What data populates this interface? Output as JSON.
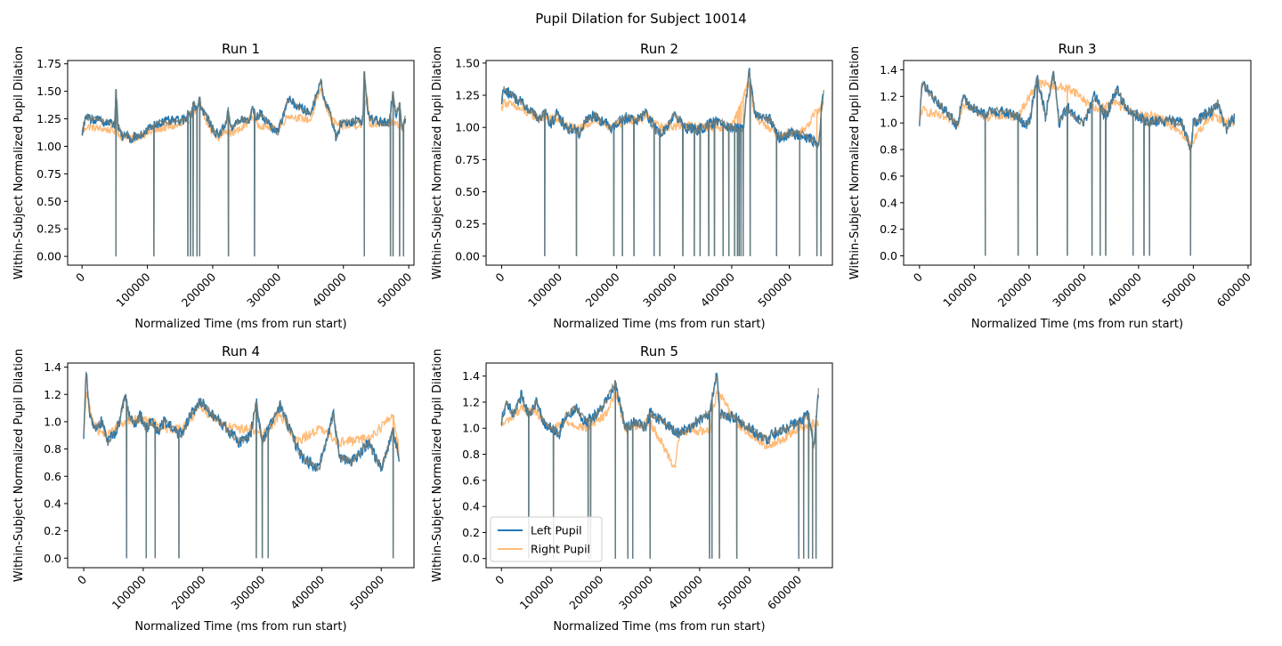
{
  "figure": {
    "title": "Pupil Dilation for Subject 10014"
  },
  "legend": {
    "entries": [
      "Left Pupil",
      "Right Pupil"
    ],
    "placement": "lower-left of Run 5"
  },
  "colors": {
    "left": "#1f77b4",
    "right": "#ffbb78",
    "overlap": "#767a70"
  },
  "chart_data": [
    {
      "type": "line",
      "title": "Run 1",
      "xlabel": "Normalized Time (ms from run start)",
      "ylabel": "Within-Subject Normalized Pupil Dilation",
      "xlim": [
        -22000,
        508000
      ],
      "ylim": [
        -0.08,
        1.78
      ],
      "xticks": [
        0,
        100000,
        200000,
        300000,
        400000,
        500000
      ],
      "xtick_labels": [
        "0",
        "100000",
        "200000",
        "300000",
        "400000",
        "500000"
      ],
      "yticks": [
        0,
        0.25,
        0.5,
        0.75,
        1.0,
        1.25,
        1.5,
        1.75
      ],
      "ytick_labels": [
        "0.00",
        "0.25",
        "0.50",
        "0.75",
        "1.00",
        "1.25",
        "1.50",
        "1.75"
      ],
      "series": [
        {
          "name": "Left Pupil",
          "x": [
            0,
            6000,
            50000,
            52000,
            55000,
            60000,
            65000,
            70000,
            75000,
            80000,
            85000,
            90000,
            95000,
            100000,
            108000,
            112000,
            120000,
            160000,
            162000,
            168000,
            170000,
            176000,
            180000,
            182000,
            190000,
            200000,
            210000,
            220000,
            224000,
            228000,
            235000,
            245000,
            256000,
            260000,
            264000,
            268000,
            272000,
            300000,
            315000,
            330000,
            350000,
            365000,
            370000,
            380000,
            390000,
            395000,
            430000,
            432000,
            436000,
            440000,
            470000,
            476000,
            480000,
            486000,
            490000,
            495000
          ],
          "y": [
            1.12,
            1.26,
            1.2,
            1.52,
            1.18,
            1.1,
            1.08,
            1.12,
            1.05,
            1.1,
            1.08,
            1.12,
            1.1,
            1.15,
            1.18,
            1.2,
            1.22,
            1.24,
            1.32,
            1.28,
            1.4,
            1.33,
            1.45,
            1.35,
            1.28,
            1.15,
            1.1,
            1.22,
            1.32,
            1.18,
            1.2,
            1.25,
            1.22,
            1.35,
            1.3,
            1.26,
            1.3,
            1.12,
            1.43,
            1.36,
            1.3,
            1.6,
            1.45,
            1.3,
            1.05,
            1.21,
            1.24,
            1.68,
            1.4,
            1.25,
            1.2,
            1.5,
            1.28,
            1.4,
            1.15,
            1.26
          ]
        },
        {
          "name": "Right Pupil",
          "x": [
            0,
            6000,
            50000,
            52000,
            55000,
            60000,
            70000,
            80000,
            90000,
            100000,
            112000,
            120000,
            160000,
            170000,
            180000,
            190000,
            200000,
            210000,
            220000,
            228000,
            245000,
            260000,
            268000,
            300000,
            315000,
            330000,
            350000,
            365000,
            380000,
            395000,
            430000,
            436000,
            440000,
            470000,
            480000,
            490000,
            495000
          ],
          "y": [
            1.1,
            1.18,
            1.14,
            1.45,
            1.12,
            1.08,
            1.1,
            1.06,
            1.1,
            1.12,
            1.14,
            1.16,
            1.2,
            1.3,
            1.38,
            1.22,
            1.12,
            1.08,
            1.15,
            1.12,
            1.16,
            1.28,
            1.2,
            1.15,
            1.28,
            1.26,
            1.24,
            1.52,
            1.25,
            1.18,
            1.2,
            1.5,
            1.2,
            1.22,
            1.2,
            1.18,
            1.24
          ]
        }
      ],
      "dropouts_x": [
        52000,
        110000,
        162000,
        166000,
        170000,
        176000,
        180000,
        224000,
        264000,
        432000,
        472000,
        476000,
        486000,
        492000
      ]
    },
    {
      "type": "line",
      "title": "Run 2",
      "xlabel": "Normalized Time (ms from run start)",
      "ylabel": "Within-Subject Normalized Pupil Dilation",
      "xlim": [
        -27000,
        575000
      ],
      "ylim": [
        -0.07,
        1.52
      ],
      "xticks": [
        0,
        100000,
        200000,
        300000,
        400000,
        500000
      ],
      "xtick_labels": [
        "0",
        "100000",
        "200000",
        "300000",
        "400000",
        "500000"
      ],
      "yticks": [
        0,
        0.25,
        0.5,
        0.75,
        1.0,
        1.25,
        1.5
      ],
      "ytick_labels": [
        "0.00",
        "0.25",
        "0.50",
        "0.75",
        "1.00",
        "1.25",
        "1.50"
      ],
      "series": [
        {
          "name": "Left Pupil",
          "x": [
            0,
            4000,
            60000,
            65000,
            75000,
            85000,
            95000,
            105000,
            115000,
            125000,
            135000,
            145000,
            160000,
            175000,
            190000,
            205000,
            220000,
            235000,
            250000,
            265000,
            280000,
            300000,
            320000,
            340000,
            360000,
            380000,
            400000,
            420000,
            430000,
            440000,
            470000,
            480000,
            500000,
            520000,
            540000,
            550000,
            560000
          ],
          "y": [
            1.2,
            1.3,
            1.1,
            1.05,
            1.12,
            1.02,
            1.1,
            1.05,
            0.98,
            1.0,
            0.95,
            1.05,
            1.1,
            1.05,
            1.0,
            1.05,
            1.08,
            1.05,
            1.12,
            1.0,
            0.95,
            1.1,
            1.0,
            0.98,
            1.02,
            1.05,
            1.0,
            0.98,
            1.45,
            1.1,
            1.05,
            0.92,
            0.95,
            0.95,
            0.9,
            0.85,
            1.3
          ]
        },
        {
          "name": "Right Pupil",
          "x": [
            0,
            4000,
            60000,
            75000,
            95000,
            115000,
            135000,
            160000,
            190000,
            220000,
            250000,
            280000,
            320000,
            360000,
            400000,
            430000,
            440000,
            480000,
            520000,
            560000
          ],
          "y": [
            1.15,
            1.2,
            1.08,
            1.08,
            1.06,
            1.02,
            0.98,
            1.06,
            1.0,
            1.05,
            1.08,
            1.0,
            1.02,
            1.0,
            1.0,
            1.35,
            1.08,
            0.95,
            0.95,
            1.2
          ]
        }
      ],
      "dropouts_x": [
        75000,
        130000,
        195000,
        210000,
        230000,
        265000,
        275000,
        315000,
        335000,
        345000,
        360000,
        370000,
        385000,
        395000,
        405000,
        410000,
        413000,
        416000,
        420000,
        432000,
        478000,
        518000,
        548000,
        555000
      ]
    },
    {
      "type": "line",
      "title": "Run 3",
      "xlabel": "Normalized Time (ms from run start)",
      "ylabel": "Within-Subject Normalized Pupil Dilation",
      "xlim": [
        -29000,
        605000
      ],
      "ylim": [
        -0.07,
        1.47
      ],
      "xticks": [
        0,
        100000,
        200000,
        300000,
        400000,
        500000,
        600000
      ],
      "xtick_labels": [
        "0",
        "100000",
        "200000",
        "300000",
        "400000",
        "500000",
        "600000"
      ],
      "yticks": [
        0,
        0.2,
        0.4,
        0.6,
        0.8,
        1.0,
        1.2,
        1.4
      ],
      "ytick_labels": [
        "0.0",
        "0.2",
        "0.4",
        "0.6",
        "0.8",
        "1.0",
        "1.2",
        "1.4"
      ],
      "series": [
        {
          "name": "Left Pupil",
          "x": [
            0,
            4000,
            70000,
            80000,
            85000,
            120000,
            130000,
            180000,
            190000,
            200000,
            215000,
            230000,
            245000,
            255000,
            270000,
            280000,
            300000,
            320000,
            340000,
            360000,
            380000,
            400000,
            420000,
            440000,
            480000,
            495000,
            500000,
            530000,
            545000,
            560000,
            575000
          ],
          "y": [
            1.0,
            1.3,
            0.98,
            1.22,
            1.15,
            1.05,
            1.1,
            1.05,
            0.98,
            1.0,
            1.35,
            1.05,
            1.38,
            1.0,
            1.12,
            1.05,
            1.0,
            1.2,
            1.05,
            1.25,
            1.1,
            1.05,
            1.0,
            1.02,
            1.0,
            0.8,
            1.0,
            1.08,
            1.15,
            0.95,
            1.05
          ]
        },
        {
          "name": "Right Pupil",
          "x": [
            0,
            4000,
            70000,
            80000,
            120000,
            180000,
            215000,
            245000,
            280000,
            320000,
            360000,
            400000,
            440000,
            495000,
            530000,
            575000
          ],
          "y": [
            0.98,
            1.1,
            1.0,
            1.15,
            1.05,
            1.05,
            1.3,
            1.28,
            1.25,
            1.1,
            1.15,
            1.05,
            1.05,
            0.85,
            1.05,
            1.0
          ]
        }
      ],
      "dropouts_x": [
        120000,
        180000,
        215000,
        270000,
        315000,
        330000,
        340000,
        390000,
        410000,
        420000,
        495000
      ]
    },
    {
      "type": "line",
      "title": "Run 4",
      "xlabel": "Normalized Time (ms from run start)",
      "ylabel": "Within-Subject Normalized Pupil Dilation",
      "xlim": [
        -27000,
        555000
      ],
      "ylim": [
        -0.07,
        1.43
      ],
      "xticks": [
        0,
        100000,
        200000,
        300000,
        400000,
        500000
      ],
      "xtick_labels": [
        "0",
        "100000",
        "200000",
        "300000",
        "400000",
        "500000"
      ],
      "yticks": [
        0,
        0.2,
        0.4,
        0.6,
        0.8,
        1.0,
        1.2,
        1.4
      ],
      "ytick_labels": [
        "0.0",
        "0.2",
        "0.4",
        "0.6",
        "0.8",
        "1.0",
        "1.2",
        "1.4"
      ],
      "series": [
        {
          "name": "Left Pupil",
          "x": [
            0,
            4000,
            10000,
            20000,
            30000,
            40000,
            50000,
            60000,
            70000,
            75000,
            85000,
            95000,
            105000,
            115000,
            125000,
            135000,
            150000,
            165000,
            180000,
            195000,
            250000,
            260000,
            280000,
            290000,
            300000,
            330000,
            360000,
            370000,
            380000,
            395000,
            420000,
            430000,
            450000,
            480000,
            500000,
            520000,
            530000
          ],
          "y": [
            0.9,
            1.38,
            1.05,
            0.95,
            1.0,
            0.85,
            0.9,
            1.0,
            1.22,
            1.05,
            0.98,
            1.05,
            0.95,
            1.0,
            0.92,
            1.0,
            0.95,
            0.9,
            1.05,
            1.15,
            0.9,
            0.85,
            0.9,
            1.15,
            0.85,
            1.12,
            0.8,
            0.72,
            0.7,
            0.65,
            1.05,
            0.75,
            0.7,
            0.85,
            0.65,
            0.95,
            0.72
          ]
        },
        {
          "name": "Right Pupil",
          "x": [
            0,
            4000,
            20000,
            40000,
            60000,
            75000,
            95000,
            115000,
            135000,
            165000,
            195000,
            250000,
            280000,
            300000,
            330000,
            360000,
            395000,
            430000,
            480000,
            520000,
            530000
          ],
          "y": [
            0.88,
            1.2,
            0.95,
            0.9,
            0.98,
            1.0,
            1.02,
            1.0,
            0.95,
            0.95,
            1.1,
            0.95,
            0.95,
            0.9,
            1.05,
            0.85,
            0.95,
            0.85,
            0.88,
            1.05,
            0.8
          ]
        }
      ],
      "dropouts_x": [
        72000,
        105000,
        120000,
        160000,
        290000,
        300000,
        310000,
        520000
      ]
    },
    {
      "type": "line",
      "title": "Run 5",
      "xlabel": "Normalized Time (ms from run start)",
      "ylabel": "Within-Subject Normalized Pupil Dilation",
      "xlim": [
        -31000,
        668000
      ],
      "ylim": [
        -0.07,
        1.5
      ],
      "xticks": [
        0,
        100000,
        200000,
        300000,
        400000,
        500000,
        600000
      ],
      "xtick_labels": [
        "0",
        "100000",
        "200000",
        "300000",
        "400000",
        "500000",
        "600000"
      ],
      "yticks": [
        0,
        0.2,
        0.4,
        0.6,
        0.8,
        1.0,
        1.2,
        1.4
      ],
      "ytick_labels": [
        "0.0",
        "0.2",
        "0.4",
        "0.6",
        "0.8",
        "1.0",
        "1.2",
        "1.4"
      ],
      "series": [
        {
          "name": "Left Pupil",
          "x": [
            0,
            10000,
            25000,
            40000,
            55000,
            70000,
            85000,
            100000,
            115000,
            130000,
            150000,
            170000,
            190000,
            210000,
            230000,
            250000,
            270000,
            290000,
            300000,
            350000,
            360000,
            420000,
            435000,
            440000,
            475000,
            480000,
            540000,
            545000,
            600000,
            620000,
            630000,
            640000
          ],
          "y": [
            1.05,
            1.2,
            1.1,
            1.25,
            1.1,
            1.2,
            1.05,
            1.0,
            0.95,
            1.1,
            1.15,
            1.05,
            1.1,
            1.2,
            1.35,
            1.0,
            1.05,
            1.0,
            1.12,
            0.98,
            0.95,
            1.12,
            1.42,
            1.1,
            1.08,
            1.05,
            0.9,
            0.95,
            1.05,
            1.1,
            0.85,
            1.28
          ]
        },
        {
          "name": "Right Pupil",
          "x": [
            0,
            40000,
            70000,
            100000,
            130000,
            170000,
            210000,
            230000,
            250000,
            300000,
            350000,
            360000,
            420000,
            435000,
            480000,
            540000,
            600000,
            640000
          ],
          "y": [
            1.02,
            1.15,
            1.12,
            0.98,
            1.05,
            1.0,
            1.1,
            1.28,
            1.0,
            1.05,
            0.7,
            0.98,
            0.98,
            1.3,
            1.02,
            0.85,
            1.0,
            1.05
          ]
        }
      ],
      "dropouts_x": [
        55000,
        105000,
        175000,
        180000,
        230000,
        255000,
        265000,
        300000,
        420000,
        425000,
        440000,
        475000,
        600000,
        610000,
        620000,
        628000,
        635000
      ]
    }
  ]
}
